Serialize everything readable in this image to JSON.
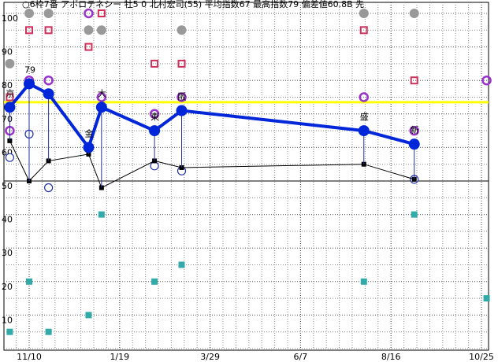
{
  "chart_data": {
    "type": "line",
    "title": "○6枠7番 アポロテネシー 牡5 0 北村宏司(55) 平均指数67 最高指数79 偏差値60.8B 先",
    "xlim": [
      -20,
      356
    ],
    "xticks": [
      {
        "value": 0,
        "label": "11/10"
      },
      {
        "value": 70,
        "label": "1/19"
      },
      {
        "value": 140,
        "label": "3/29"
      },
      {
        "value": 210,
        "label": "6/7"
      },
      {
        "value": 280,
        "label": "8/16"
      },
      {
        "value": 350,
        "label": "10/25"
      }
    ],
    "ylim": [
      0,
      100
    ],
    "yticks": [
      10,
      20,
      30,
      40,
      50,
      60,
      70,
      80,
      90,
      100
    ],
    "grid": true,
    "reference_line": {
      "value": 73.5,
      "color": "#ffff00"
    },
    "series": [
      {
        "marker": "square",
        "color": "#33aaaa",
        "x": [
          -15,
          0,
          15,
          46,
          56,
          97,
          118,
          259,
          298,
          354
        ],
        "values": [
          5,
          20,
          5,
          10,
          40,
          20,
          25,
          20,
          40,
          15
        ]
      },
      {
        "marker": "dot",
        "color": "#999999",
        "x": [
          -15,
          0,
          15,
          46,
          56,
          118,
          259,
          298
        ],
        "values": [
          85,
          100,
          100,
          95,
          95,
          95,
          100,
          100
        ]
      },
      {
        "marker": "square-open",
        "color": "#d0305a",
        "x": [
          -15,
          0,
          15,
          46,
          56,
          97,
          118,
          259,
          298
        ],
        "values": [
          75,
          95,
          95,
          90,
          100,
          85,
          85,
          95,
          80
        ]
      },
      {
        "marker": "circle-open",
        "color": "#9933cc",
        "x": [
          -15,
          0,
          15,
          46,
          56,
          97,
          118,
          259,
          298,
          354
        ],
        "values": [
          65,
          80,
          80,
          100,
          75,
          70,
          75,
          75,
          65,
          80
        ]
      },
      {
        "marker": "ring",
        "color": "#2233aa",
        "x": [
          -15,
          0,
          15,
          97,
          118,
          298
        ],
        "values": [
          57,
          64,
          48,
          54.5,
          53,
          50.5
        ]
      },
      {
        "marker": "line-small",
        "color": "#000000",
        "x": [
          -15,
          0,
          15,
          46,
          56,
          97,
          118,
          259,
          298
        ],
        "values": [
          62,
          50,
          56,
          58,
          48,
          56,
          54,
          55,
          50.5
        ]
      },
      {
        "marker": "line-main",
        "color": "#0026d9",
        "x": [
          -15,
          0,
          15,
          46,
          56,
          97,
          118,
          259,
          298
        ],
        "values": [
          72,
          79,
          76,
          60,
          72,
          65,
          71,
          65,
          61
        ],
        "value_labels": [
          null,
          "79",
          null,
          null,
          null,
          null,
          null,
          null,
          null
        ],
        "point_labels": [
          "京",
          null,
          null,
          "金",
          "大",
          "東",
          "阪",
          "盛",
          "新"
        ]
      }
    ]
  }
}
